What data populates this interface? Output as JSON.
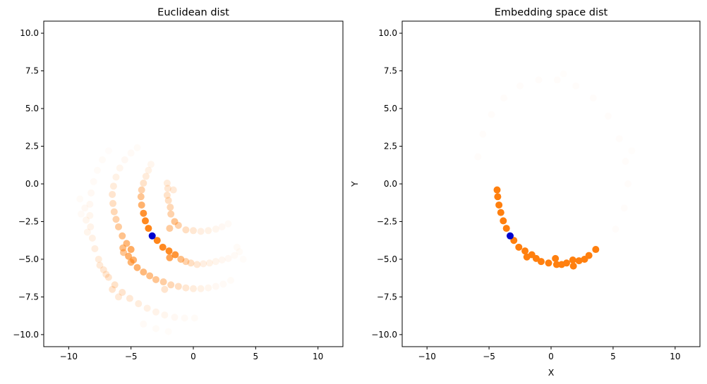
{
  "figure": {
    "background": "#ffffff",
    "point_color": "#ff7f0e",
    "query_color": "#0000cd"
  },
  "chart_data": [
    {
      "type": "scatter",
      "title": "Euclidean dist",
      "xlabel": "",
      "ylabel": "",
      "xlim": [
        -12,
        12
      ],
      "ylim": [
        -10.8,
        10.8
      ],
      "xticks": [
        -10,
        -5,
        0,
        5,
        10
      ],
      "yticks": [
        -10.0,
        -7.5,
        -5.0,
        -2.5,
        0.0,
        2.5,
        5.0,
        7.5,
        10.0
      ],
      "grid": false,
      "point_color": "#ff7f0e",
      "query_point": {
        "x": -3.3,
        "y": -3.45,
        "color": "#0000cd"
      },
      "points": [
        {
          "x": -3.6,
          "y": -2.95,
          "alpha": 0.95
        },
        {
          "x": -3.85,
          "y": -2.45,
          "alpha": 0.92
        },
        {
          "x": -4.0,
          "y": -1.95,
          "alpha": 0.85
        },
        {
          "x": -4.15,
          "y": -1.4,
          "alpha": 0.6
        },
        {
          "x": -4.2,
          "y": -0.85,
          "alpha": 0.45
        },
        {
          "x": -4.15,
          "y": -0.4,
          "alpha": 0.35
        },
        {
          "x": -4.0,
          "y": 0.05,
          "alpha": 0.22
        },
        {
          "x": -3.8,
          "y": 0.5,
          "alpha": 0.15
        },
        {
          "x": -3.6,
          "y": 0.9,
          "alpha": 0.1
        },
        {
          "x": -3.4,
          "y": 1.3,
          "alpha": 0.07
        },
        {
          "x": -2.9,
          "y": -3.75,
          "alpha": 0.95
        },
        {
          "x": -2.45,
          "y": -4.2,
          "alpha": 0.92
        },
        {
          "x": -1.95,
          "y": -4.45,
          "alpha": 0.9
        },
        {
          "x": -1.45,
          "y": -4.7,
          "alpha": 0.82
        },
        {
          "x": -1.9,
          "y": -4.9,
          "alpha": 0.7
        },
        {
          "x": -1.0,
          "y": -5.0,
          "alpha": 0.5
        },
        {
          "x": -0.6,
          "y": -5.15,
          "alpha": 0.35
        },
        {
          "x": -0.2,
          "y": -5.25,
          "alpha": 0.25
        },
        {
          "x": 0.3,
          "y": -5.35,
          "alpha": 0.18
        },
        {
          "x": 0.8,
          "y": -5.3,
          "alpha": 0.12
        },
        {
          "x": 1.3,
          "y": -5.25,
          "alpha": 0.1
        },
        {
          "x": 1.8,
          "y": -5.15,
          "alpha": 0.08
        },
        {
          "x": 2.3,
          "y": -5.05,
          "alpha": 0.06
        },
        {
          "x": 2.8,
          "y": -4.95,
          "alpha": 0.05
        },
        {
          "x": 3.3,
          "y": -4.75,
          "alpha": 0.04
        },
        {
          "x": 3.7,
          "y": -4.5,
          "alpha": 0.03
        },
        {
          "x": -1.5,
          "y": -2.5,
          "alpha": 0.45
        },
        {
          "x": -1.8,
          "y": -2.0,
          "alpha": 0.35
        },
        {
          "x": -1.85,
          "y": -1.55,
          "alpha": 0.3
        },
        {
          "x": -2.0,
          "y": -1.1,
          "alpha": 0.25
        },
        {
          "x": -2.1,
          "y": -0.75,
          "alpha": 0.22
        },
        {
          "x": -2.05,
          "y": -0.3,
          "alpha": 0.18
        },
        {
          "x": -2.1,
          "y": 0.05,
          "alpha": 0.15
        },
        {
          "x": -1.6,
          "y": -0.4,
          "alpha": 0.16
        },
        {
          "x": -1.9,
          "y": -2.95,
          "alpha": 0.4
        },
        {
          "x": -1.2,
          "y": -2.75,
          "alpha": 0.35
        },
        {
          "x": -0.6,
          "y": -3.05,
          "alpha": 0.25
        },
        {
          "x": 0.0,
          "y": -3.1,
          "alpha": 0.18
        },
        {
          "x": 0.6,
          "y": -3.15,
          "alpha": 0.12
        },
        {
          "x": 1.2,
          "y": -3.1,
          "alpha": 0.1
        },
        {
          "x": 1.8,
          "y": -3.0,
          "alpha": 0.07
        },
        {
          "x": 2.3,
          "y": -2.85,
          "alpha": 0.05
        },
        {
          "x": 2.8,
          "y": -2.65,
          "alpha": 0.04
        },
        {
          "x": -5.0,
          "y": -4.35,
          "alpha": 0.65
        },
        {
          "x": -5.35,
          "y": -3.95,
          "alpha": 0.55
        },
        {
          "x": -5.7,
          "y": -3.45,
          "alpha": 0.48
        },
        {
          "x": -6.0,
          "y": -2.85,
          "alpha": 0.4
        },
        {
          "x": -6.2,
          "y": -2.35,
          "alpha": 0.35
        },
        {
          "x": -6.35,
          "y": -1.85,
          "alpha": 0.3
        },
        {
          "x": -6.45,
          "y": -1.3,
          "alpha": 0.25
        },
        {
          "x": -6.5,
          "y": -0.7,
          "alpha": 0.2
        },
        {
          "x": -6.4,
          "y": -0.15,
          "alpha": 0.15
        },
        {
          "x": -6.2,
          "y": 0.45,
          "alpha": 0.1
        },
        {
          "x": -5.9,
          "y": 1.05,
          "alpha": 0.07
        },
        {
          "x": -5.5,
          "y": 1.6,
          "alpha": 0.05
        },
        {
          "x": -5.0,
          "y": 2.05,
          "alpha": 0.04
        },
        {
          "x": -4.5,
          "y": 2.4,
          "alpha": 0.03
        },
        {
          "x": -5.2,
          "y": -4.8,
          "alpha": 0.6
        },
        {
          "x": -5.65,
          "y": -4.25,
          "alpha": 0.5
        },
        {
          "x": -5.0,
          "y": -5.2,
          "alpha": 0.58
        },
        {
          "x": -4.5,
          "y": -5.55,
          "alpha": 0.6
        },
        {
          "x": -4.0,
          "y": -5.85,
          "alpha": 0.55
        },
        {
          "x": -3.5,
          "y": -6.1,
          "alpha": 0.5
        },
        {
          "x": -3.0,
          "y": -6.35,
          "alpha": 0.45
        },
        {
          "x": -2.4,
          "y": -6.5,
          "alpha": 0.38
        },
        {
          "x": -1.8,
          "y": -6.7,
          "alpha": 0.3
        },
        {
          "x": -1.2,
          "y": -6.8,
          "alpha": 0.25
        },
        {
          "x": -0.6,
          "y": -6.9,
          "alpha": 0.18
        },
        {
          "x": 0.0,
          "y": -6.95,
          "alpha": 0.14
        },
        {
          "x": 0.6,
          "y": -6.95,
          "alpha": 0.1
        },
        {
          "x": 1.2,
          "y": -6.9,
          "alpha": 0.07
        },
        {
          "x": 1.8,
          "y": -6.8,
          "alpha": 0.05
        },
        {
          "x": 2.4,
          "y": -6.65,
          "alpha": 0.04
        },
        {
          "x": 3.0,
          "y": -6.4,
          "alpha": 0.03
        },
        {
          "x": -2.3,
          "y": -7.0,
          "alpha": 0.2
        },
        {
          "x": -4.8,
          "y": -5.05,
          "alpha": 0.6
        },
        {
          "x": -5.6,
          "y": -4.55,
          "alpha": 0.45
        },
        {
          "x": -6.8,
          "y": -6.2,
          "alpha": 0.2
        },
        {
          "x": -7.2,
          "y": -5.7,
          "alpha": 0.18
        },
        {
          "x": -7.6,
          "y": -5.0,
          "alpha": 0.15
        },
        {
          "x": -7.9,
          "y": -4.3,
          "alpha": 0.13
        },
        {
          "x": -8.1,
          "y": -3.6,
          "alpha": 0.11
        },
        {
          "x": -8.25,
          "y": -2.85,
          "alpha": 0.09
        },
        {
          "x": -8.3,
          "y": -2.1,
          "alpha": 0.07
        },
        {
          "x": -8.3,
          "y": -1.35,
          "alpha": 0.06
        },
        {
          "x": -8.2,
          "y": -0.6,
          "alpha": 0.05
        },
        {
          "x": -8.0,
          "y": 0.15,
          "alpha": 0.04
        },
        {
          "x": -7.7,
          "y": 0.9,
          "alpha": 0.03
        },
        {
          "x": -7.3,
          "y": 1.6,
          "alpha": 0.03
        },
        {
          "x": -6.8,
          "y": 2.2,
          "alpha": 0.02
        },
        {
          "x": -6.3,
          "y": -6.7,
          "alpha": 0.22
        },
        {
          "x": -5.7,
          "y": -7.2,
          "alpha": 0.2
        },
        {
          "x": -5.1,
          "y": -7.6,
          "alpha": 0.17
        },
        {
          "x": -4.4,
          "y": -7.95,
          "alpha": 0.14
        },
        {
          "x": -3.7,
          "y": -8.25,
          "alpha": 0.11
        },
        {
          "x": -3.0,
          "y": -8.5,
          "alpha": 0.09
        },
        {
          "x": -2.3,
          "y": -8.7,
          "alpha": 0.07
        },
        {
          "x": -1.5,
          "y": -8.85,
          "alpha": 0.05
        },
        {
          "x": -0.7,
          "y": -8.9,
          "alpha": 0.04
        },
        {
          "x": 0.1,
          "y": -8.9,
          "alpha": 0.03
        },
        {
          "x": -7.5,
          "y": -5.4,
          "alpha": 0.16
        },
        {
          "x": -7.0,
          "y": -6.0,
          "alpha": 0.18
        },
        {
          "x": -8.5,
          "y": -3.2,
          "alpha": 0.08
        },
        {
          "x": -8.6,
          "y": -2.4,
          "alpha": 0.07
        },
        {
          "x": -8.7,
          "y": -1.6,
          "alpha": 0.05
        },
        {
          "x": -6.5,
          "y": -7.0,
          "alpha": 0.2
        },
        {
          "x": -6.0,
          "y": -7.5,
          "alpha": 0.16
        },
        {
          "x": -9.0,
          "y": -2.0,
          "alpha": 0.04
        },
        {
          "x": -9.1,
          "y": -1.0,
          "alpha": 0.03
        },
        {
          "x": -4.0,
          "y": -9.3,
          "alpha": 0.04
        },
        {
          "x": -3.0,
          "y": -9.6,
          "alpha": 0.03
        },
        {
          "x": -2.0,
          "y": -9.8,
          "alpha": 0.025
        },
        {
          "x": 3.5,
          "y": -4.2,
          "alpha": 0.03
        },
        {
          "x": 4.0,
          "y": -5.0,
          "alpha": 0.025
        }
      ]
    },
    {
      "type": "scatter",
      "title": "Embedding space dist",
      "xlabel": "X",
      "ylabel": "Y",
      "xlim": [
        -12,
        12
      ],
      "ylim": [
        -10.8,
        10.8
      ],
      "xticks": [
        -10,
        -5,
        0,
        5,
        10
      ],
      "yticks": [
        -10.0,
        -7.5,
        -5.0,
        -2.5,
        0.0,
        2.5,
        5.0,
        7.5,
        10.0
      ],
      "grid": false,
      "point_color": "#ff7f0e",
      "query_point": {
        "x": -3.3,
        "y": -3.45,
        "color": "#0000cd"
      },
      "points": [
        {
          "x": -4.35,
          "y": -0.4,
          "alpha": 1
        },
        {
          "x": -4.3,
          "y": -0.85,
          "alpha": 1
        },
        {
          "x": -4.2,
          "y": -1.4,
          "alpha": 1
        },
        {
          "x": -4.05,
          "y": -1.9,
          "alpha": 1
        },
        {
          "x": -3.85,
          "y": -2.45,
          "alpha": 1
        },
        {
          "x": -3.6,
          "y": -2.95,
          "alpha": 1
        },
        {
          "x": -3.0,
          "y": -3.75,
          "alpha": 1
        },
        {
          "x": -2.6,
          "y": -4.2,
          "alpha": 1
        },
        {
          "x": -2.1,
          "y": -4.45,
          "alpha": 1
        },
        {
          "x": -1.55,
          "y": -4.7,
          "alpha": 1
        },
        {
          "x": -1.95,
          "y": -4.85,
          "alpha": 1
        },
        {
          "x": -1.2,
          "y": -4.95,
          "alpha": 1
        },
        {
          "x": -0.8,
          "y": -5.15,
          "alpha": 1
        },
        {
          "x": -0.2,
          "y": -5.25,
          "alpha": 1
        },
        {
          "x": 0.35,
          "y": -4.95,
          "alpha": 1
        },
        {
          "x": 0.45,
          "y": -5.35,
          "alpha": 1
        },
        {
          "x": 0.85,
          "y": -5.35,
          "alpha": 1
        },
        {
          "x": 1.25,
          "y": -5.25,
          "alpha": 1
        },
        {
          "x": 1.75,
          "y": -5.05,
          "alpha": 1
        },
        {
          "x": 1.8,
          "y": -5.45,
          "alpha": 1
        },
        {
          "x": 2.25,
          "y": -5.1,
          "alpha": 1
        },
        {
          "x": 2.7,
          "y": -5.0,
          "alpha": 1
        },
        {
          "x": 3.05,
          "y": -4.75,
          "alpha": 1
        },
        {
          "x": 3.6,
          "y": -4.35,
          "alpha": 1
        },
        {
          "x": 6.2,
          "y": 0.0,
          "alpha": 0.02
        },
        {
          "x": 6.0,
          "y": 1.5,
          "alpha": 0.02
        },
        {
          "x": 5.5,
          "y": 3.0,
          "alpha": 0.02
        },
        {
          "x": 4.6,
          "y": 4.5,
          "alpha": 0.02
        },
        {
          "x": 3.4,
          "y": 5.7,
          "alpha": 0.02
        },
        {
          "x": 2.0,
          "y": 6.5,
          "alpha": 0.02
        },
        {
          "x": 0.5,
          "y": 6.9,
          "alpha": 0.02
        },
        {
          "x": -1.0,
          "y": 6.9,
          "alpha": 0.02
        },
        {
          "x": -2.5,
          "y": 6.5,
          "alpha": 0.02
        },
        {
          "x": -3.8,
          "y": 5.7,
          "alpha": 0.02
        },
        {
          "x": -4.8,
          "y": 4.6,
          "alpha": 0.02
        },
        {
          "x": -5.5,
          "y": 3.3,
          "alpha": 0.02
        },
        {
          "x": -5.9,
          "y": 1.8,
          "alpha": 0.02
        },
        {
          "x": 5.9,
          "y": -1.6,
          "alpha": 0.02
        },
        {
          "x": 5.2,
          "y": -3.0,
          "alpha": 0.02
        },
        {
          "x": 6.5,
          "y": 2.2,
          "alpha": 0.015
        },
        {
          "x": 1.0,
          "y": 7.3,
          "alpha": 0.015
        }
      ]
    }
  ]
}
